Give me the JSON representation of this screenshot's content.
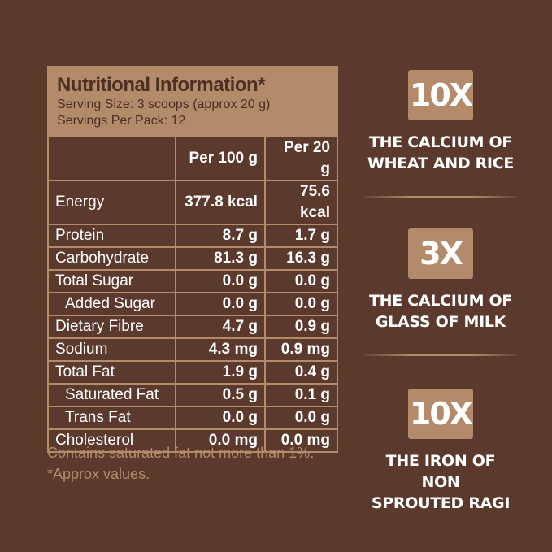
{
  "panel": {
    "title": "Nutritional Information*",
    "serving_size": "Serving Size: 3 scoops (approx 20 g)",
    "servings_per_pack": "Servings Per Pack: 12",
    "columns": [
      "",
      "Per 100 g",
      "Per 20 g"
    ],
    "rows": [
      {
        "name": "Energy",
        "per100": "377.8 kcal",
        "per20": "75.6 kcal"
      },
      {
        "name": "Protein",
        "per100": "8.7 g",
        "per20": "1.7 g"
      },
      {
        "name": "Carbohydrate",
        "per100": "81.3 g",
        "per20": "16.3 g"
      },
      {
        "name": "Total Sugar",
        "per100": "0.0 g",
        "per20": "0.0 g"
      },
      {
        "name": "Added Sugar",
        "per100": "0.0 g",
        "per20": "0.0 g"
      },
      {
        "name": "Dietary Fibre",
        "per100": "4.7 g",
        "per20": "0.9 g"
      },
      {
        "name": "Sodium",
        "per100": "4.3 mg",
        "per20": "0.9 mg"
      },
      {
        "name": "Total Fat",
        "per100": "1.9 g",
        "per20": "0.4 g"
      },
      {
        "name": "Saturated Fat",
        "per100": "0.5 g",
        "per20": "0.1 g"
      },
      {
        "name": "Trans Fat",
        "per100": "0.0 g",
        "per20": "0.0 g"
      },
      {
        "name": "Cholesterol",
        "per100": "0.0 mg",
        "per20": "0.0 mg"
      }
    ]
  },
  "footnotes": [
    "Contains saturated fat not more than 1%.",
    "*Approx values."
  ],
  "claims": [
    {
      "badge": "10X",
      "line1": "THE CALCIUM OF",
      "line2": "WHEAT AND RICE"
    },
    {
      "badge": "3X",
      "line1": "THE CALCIUM OF",
      "line2": "GLASS OF MILK"
    },
    {
      "badge": "10X",
      "line1": "THE IRON OF NON",
      "line2": "SPROUTED RAGI"
    }
  ],
  "colors": {
    "background": "#5b3a2d",
    "accent": "#b38a6a",
    "text": "#ffffff"
  }
}
